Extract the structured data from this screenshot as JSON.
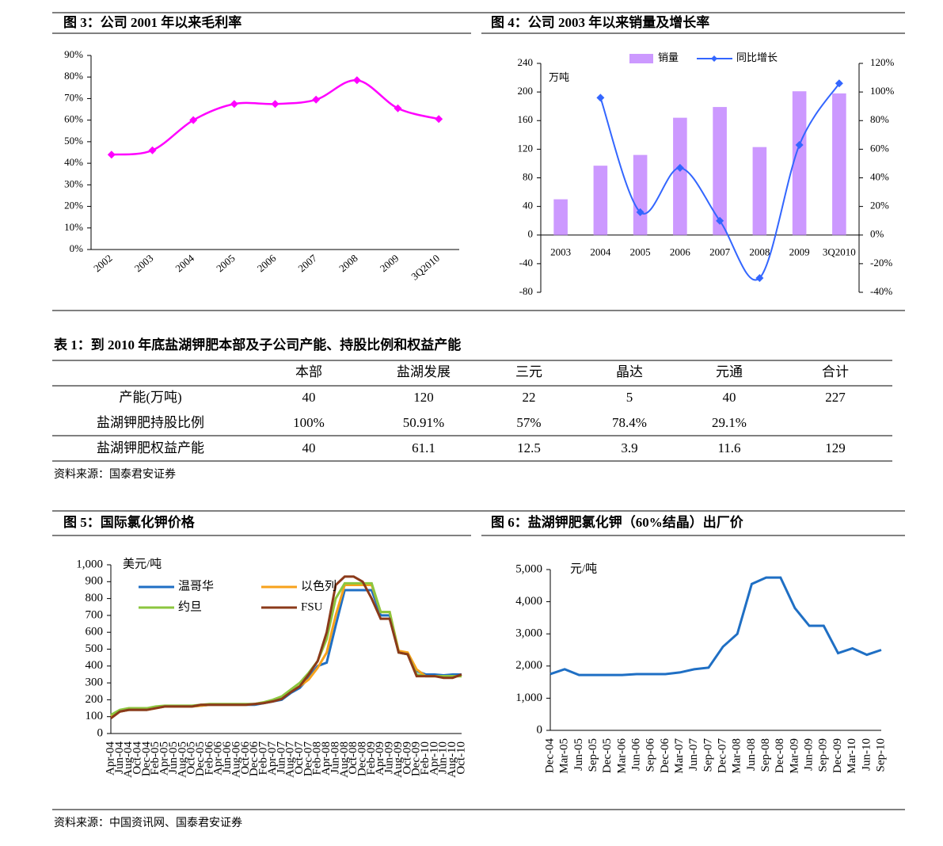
{
  "chart_data": [
    {
      "type": "line",
      "title": "图 3：公司 2001 年以来毛利率",
      "categories": [
        "2002",
        "2003",
        "2004",
        "2005",
        "2006",
        "2007",
        "2008",
        "2009",
        "3Q2010"
      ],
      "values": [
        44,
        46,
        60,
        67.5,
        67.5,
        69.5,
        78.5,
        65.5,
        60.5
      ],
      "color": "#ff00ff",
      "marker": "diamond",
      "smooth": true,
      "ylim": [
        0,
        90
      ],
      "yticks": [
        {
          "value": 0,
          "label": "0%"
        },
        {
          "value": 10,
          "label": "10%"
        },
        {
          "value": 20,
          "label": "20%"
        },
        {
          "value": 30,
          "label": "30%"
        },
        {
          "value": 40,
          "label": "40%"
        },
        {
          "value": 50,
          "label": "50%"
        },
        {
          "value": 60,
          "label": "60%"
        },
        {
          "value": 70,
          "label": "70%"
        },
        {
          "value": 80,
          "label": "80%"
        },
        {
          "value": 90,
          "label": "90%"
        }
      ]
    },
    {
      "type": "bar",
      "title": "图 4：公司 2003 年以来销量及增长率",
      "y_label": "万吨",
      "categories": [
        "2003",
        "2004",
        "2005",
        "2006",
        "2007",
        "2008",
        "2009",
        "3Q2010"
      ],
      "series": [
        {
          "name": "销量",
          "type": "bar",
          "color": "#cc99ff",
          "values": [
            50,
            97,
            112,
            164,
            179,
            123,
            201,
            198
          ]
        },
        {
          "name": "同比增长",
          "type": "line",
          "axis": "y2",
          "color": "#3366ff",
          "marker": "diamond",
          "smooth": true,
          "values": [
            null,
            96,
            16,
            47,
            10,
            -30,
            63,
            106
          ]
        }
      ],
      "legend": "top",
      "ylim": [
        -80,
        240
      ],
      "yticks": [
        -80,
        -40,
        0,
        40,
        80,
        120,
        160,
        200,
        240
      ],
      "y2lim": [
        -40,
        120
      ],
      "y2ticks": [
        {
          "value": -40,
          "label": "-40%"
        },
        {
          "value": -20,
          "label": "-20%"
        },
        {
          "value": 0,
          "label": "0%"
        },
        {
          "value": 20,
          "label": "20%"
        },
        {
          "value": 40,
          "label": "40%"
        },
        {
          "value": 60,
          "label": "60%"
        },
        {
          "value": 80,
          "label": "80%"
        },
        {
          "value": 100,
          "label": "100%"
        },
        {
          "value": 120,
          "label": "120%"
        }
      ]
    },
    {
      "type": "line",
      "title": "图 5：国际氯化钾价格",
      "y_label": "美元/吨",
      "categories": [
        "Apr-04",
        "Jun-04",
        "Aug-04",
        "Oct-04",
        "Dec-04",
        "Feb-05",
        "Apr-05",
        "Jun-05",
        "Aug-05",
        "Oct-05",
        "Dec-05",
        "Feb-06",
        "Apr-06",
        "Jun-06",
        "Aug-06",
        "Oct-06",
        "Dec-06",
        "Feb-07",
        "Apr-07",
        "Jun-07",
        "Aug-07",
        "Oct-07",
        "Dec-07",
        "Feb-08",
        "Apr-08",
        "Jun-08",
        "Aug-08",
        "Oct-08",
        "Dec-08",
        "Feb-09",
        "Apr-09",
        "Jun-09",
        "Aug-09",
        "Oct-09",
        "Dec-09",
        "Feb-10",
        "Apr-10",
        "Jun-10",
        "Aug-10",
        "Oct-10"
      ],
      "series": [
        {
          "name": "温哥华",
          "color": "#1f6fc4",
          "values": [
            110,
            130,
            140,
            140,
            140,
            155,
            160,
            160,
            160,
            160,
            165,
            170,
            170,
            170,
            170,
            170,
            170,
            180,
            190,
            200,
            240,
            270,
            330,
            400,
            420,
            640,
            850,
            850,
            850,
            850,
            700,
            700,
            480,
            470,
            370,
            350,
            350,
            345,
            350,
            350
          ]
        },
        {
          "name": "以色列",
          "color": "#f7a21b",
          "values": [
            100,
            130,
            140,
            140,
            140,
            150,
            160,
            160,
            160,
            160,
            165,
            170,
            170,
            170,
            170,
            170,
            175,
            185,
            195,
            210,
            250,
            280,
            320,
            390,
            480,
            700,
            880,
            880,
            880,
            880,
            720,
            720,
            490,
            480,
            380,
            340,
            340,
            340,
            340,
            340
          ]
        },
        {
          "name": "约旦",
          "color": "#8cc63f",
          "values": [
            110,
            140,
            150,
            150,
            150,
            160,
            165,
            165,
            165,
            165,
            170,
            175,
            175,
            175,
            175,
            175,
            175,
            185,
            200,
            220,
            260,
            300,
            360,
            430,
            560,
            800,
            890,
            890,
            890,
            890,
            720,
            720,
            480,
            470,
            350,
            340,
            340,
            340,
            340,
            340
          ]
        },
        {
          "name": "FSU",
          "color": "#8b3a1a",
          "values": [
            90,
            130,
            140,
            140,
            140,
            150,
            160,
            160,
            160,
            160,
            170,
            170,
            170,
            170,
            170,
            170,
            175,
            180,
            190,
            205,
            245,
            280,
            350,
            430,
            600,
            880,
            930,
            930,
            900,
            800,
            680,
            680,
            480,
            470,
            340,
            340,
            340,
            330,
            330,
            350
          ]
        }
      ],
      "legend": "upper left",
      "ylim": [
        0,
        1000
      ],
      "yticks": [
        0,
        100,
        200,
        300,
        400,
        500,
        600,
        700,
        800,
        900,
        {
          "value": 1000,
          "label": "1,000"
        }
      ]
    },
    {
      "type": "line",
      "title": "图 6：盐湖钾肥氯化钾（60%结晶）出厂价",
      "y_label": "元/吨",
      "categories": [
        "Dec-04",
        "Mar-05",
        "Jun-05",
        "Sep-05",
        "Dec-05",
        "Mar-06",
        "Jun-06",
        "Sep-06",
        "Dec-06",
        "Mar-07",
        "Jun-07",
        "Sep-07",
        "Dec-07",
        "Mar-08",
        "Jun-08",
        "Sep-08",
        "Dec-08",
        "Mar-09",
        "Jun-09",
        "Sep-09",
        "Dec-09",
        "Mar-10",
        "Jun-10",
        "Sep-10"
      ],
      "values": [
        1750,
        1900,
        1720,
        1720,
        1720,
        1720,
        1750,
        1750,
        1750,
        1800,
        1900,
        1950,
        2600,
        3000,
        4550,
        4750,
        4750,
        3800,
        3250,
        3250,
        2400,
        2550,
        2350,
        2500
      ],
      "color": "#1f6fc4",
      "ylim": [
        0,
        5000
      ],
      "yticks": [
        0,
        {
          "value": 1000,
          "label": "1,000"
        },
        {
          "value": 2000,
          "label": "2,000"
        },
        {
          "value": 3000,
          "label": "3,000"
        },
        {
          "value": 4000,
          "label": "4,000"
        },
        {
          "value": 5000,
          "label": "5,000"
        }
      ]
    }
  ],
  "table": {
    "title": "表 1：到 2010 年底盐湖钾肥本部及子公司产能、持股比例和权益产能",
    "header": [
      "本部",
      "盐湖发展",
      "三元",
      "晶达",
      "元通",
      "合计"
    ],
    "rows": [
      [
        "产能(万吨)",
        "40",
        "120",
        "22",
        "5",
        "40",
        "227"
      ],
      [
        "盐湖钾肥持股比例",
        "100%",
        "50.91%",
        "57%",
        "78.4%",
        "29.1%"
      ],
      [
        "盐湖钾肥权益产能",
        "40",
        "61.1",
        "12.5",
        "3.9",
        "11.6",
        "129"
      ]
    ],
    "source": "资料来源：国泰君安证券"
  },
  "source": "资料来源：中国资讯网、国泰君安证券"
}
